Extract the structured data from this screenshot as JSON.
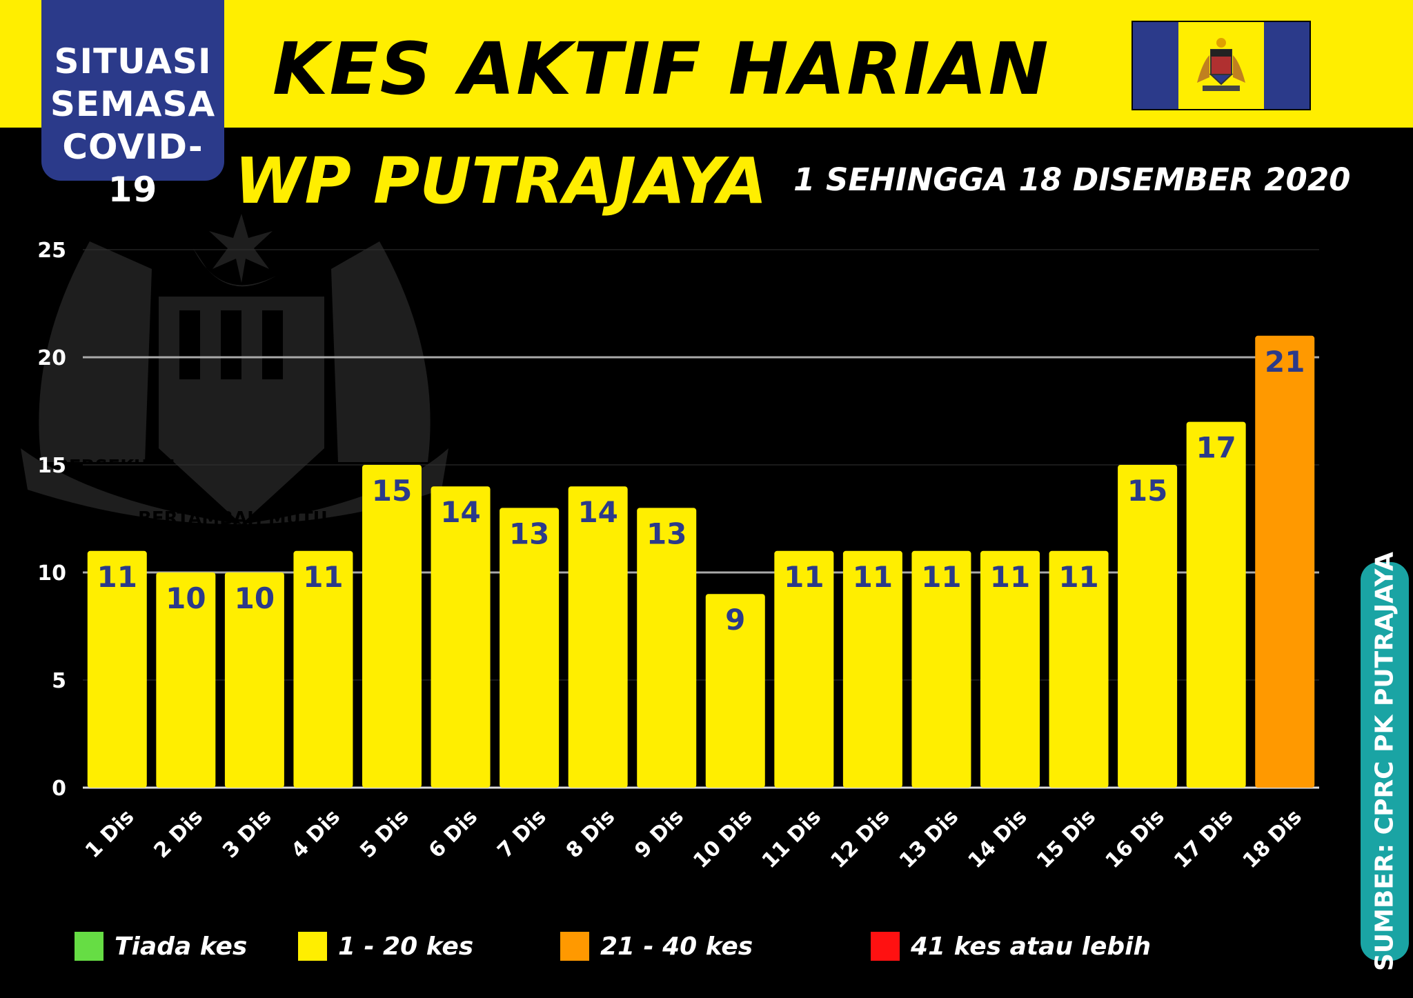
{
  "header": {
    "badge_line1": "SITUASI",
    "badge_line2": "SEMASA",
    "badge_line3": "COVID-19",
    "title": "KES AKTIF HARIAN",
    "subtitle": "WP PUTRAJAYA",
    "date_range": "1 SEHINGGA 18 DISEMBER 2020"
  },
  "colors": {
    "header_yellow": "#ffee00",
    "badge_blue": "#2b3a8a",
    "bar_yellow": "#ffee00",
    "bar_orange": "#ff9900",
    "legend_green": "#66dd44",
    "legend_red": "#ff1111",
    "source_teal": "#1aa4a4"
  },
  "background": {
    "crest_text1": "BERSEKUTU",
    "crest_text2": "BERTAMBAH MUTU"
  },
  "chart_data": {
    "type": "bar",
    "categories": [
      "1 Dis",
      "2 Dis",
      "3 Dis",
      "4 Dis",
      "5 Dis",
      "6 Dis",
      "7 Dis",
      "8 Dis",
      "9 Dis",
      "10 Dis",
      "11 Dis",
      "12 Dis",
      "13 Dis",
      "14 Dis",
      "15 Dis",
      "16 Dis",
      "17 Dis",
      "18 Dis"
    ],
    "values": [
      11,
      10,
      10,
      11,
      15,
      14,
      13,
      14,
      13,
      9,
      11,
      11,
      11,
      11,
      11,
      15,
      17,
      21
    ],
    "bar_colors": [
      "#ffee00",
      "#ffee00",
      "#ffee00",
      "#ffee00",
      "#ffee00",
      "#ffee00",
      "#ffee00",
      "#ffee00",
      "#ffee00",
      "#ffee00",
      "#ffee00",
      "#ffee00",
      "#ffee00",
      "#ffee00",
      "#ffee00",
      "#ffee00",
      "#ffee00",
      "#ff9900"
    ],
    "ylim": [
      0,
      25
    ],
    "yticks": [
      0,
      5,
      10,
      15,
      20,
      25
    ],
    "grid": true,
    "data_labels": true
  },
  "legend": {
    "items": [
      {
        "label": "Tiada kes",
        "color": "#66dd44"
      },
      {
        "label": "1 - 20 kes",
        "color": "#ffee00"
      },
      {
        "label": "21 - 40 kes",
        "color": "#ff9900"
      },
      {
        "label": "41 kes atau lebih",
        "color": "#ff1111"
      }
    ]
  },
  "source": "SUMBER: CPRC PK PUTRAJAYA"
}
